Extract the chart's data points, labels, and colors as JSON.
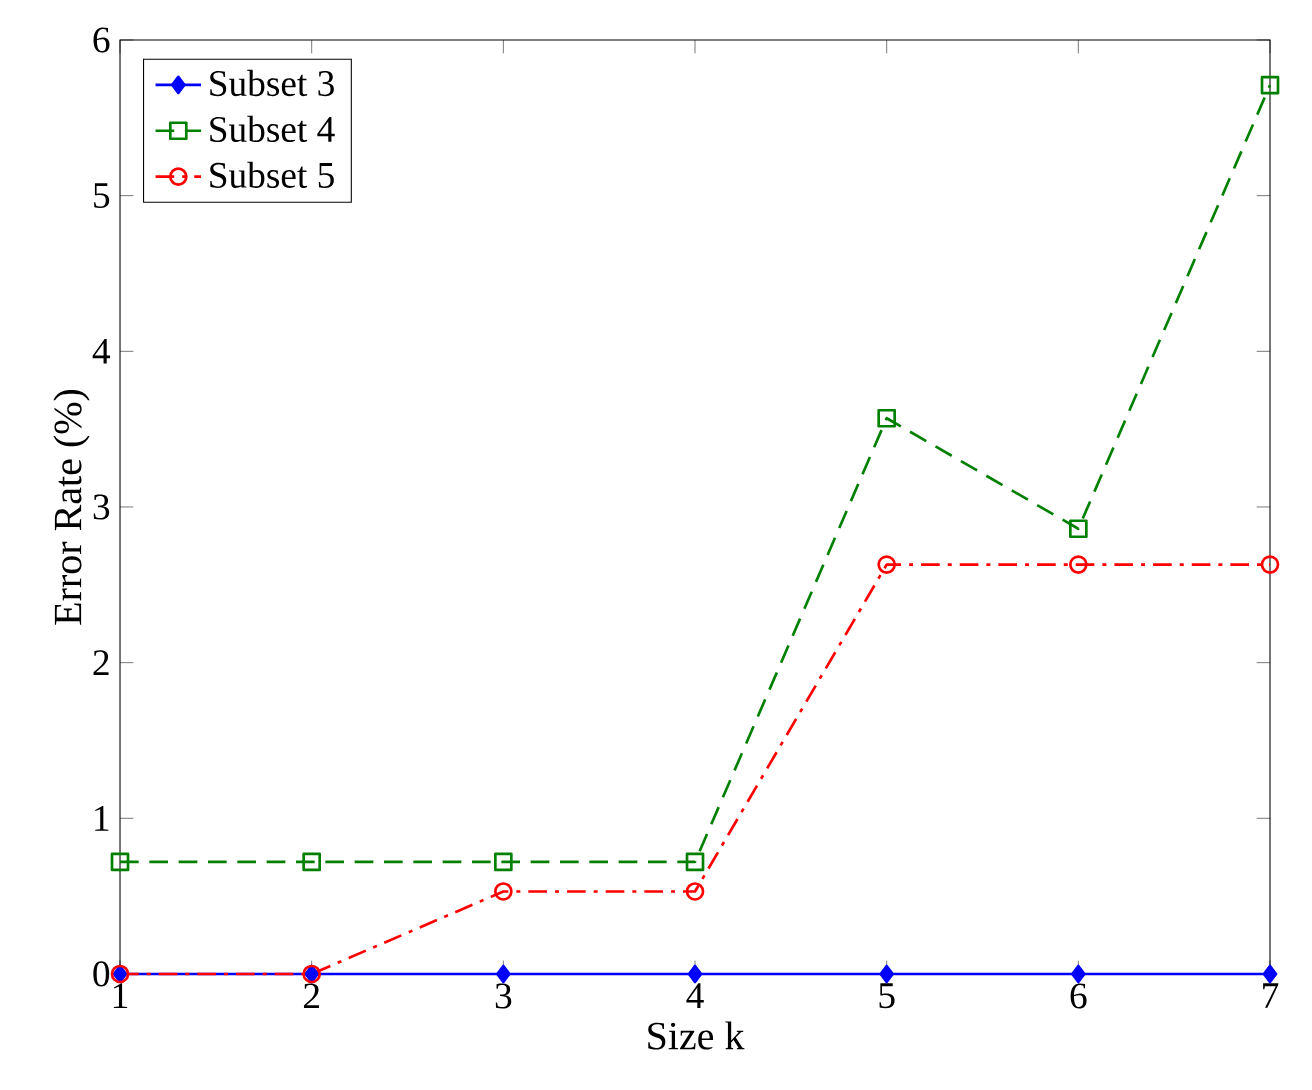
{
  "chart_data": {
    "type": "line",
    "xlabel": "Size k",
    "ylabel": "Error Rate (%)",
    "x": [
      1,
      2,
      3,
      4,
      5,
      6,
      7
    ],
    "series": [
      {
        "name": "Subset 3",
        "color": "#0000ff",
        "marker": "diamond",
        "line_style": "solid",
        "values": [
          0,
          0,
          0,
          0,
          0,
          0,
          0
        ]
      },
      {
        "name": "Subset 4",
        "color": "#008000",
        "marker": "square",
        "line_style": "dashed",
        "values": [
          0.72,
          0.72,
          0.72,
          0.72,
          3.57,
          2.86,
          5.71
        ]
      },
      {
        "name": "Subset 5",
        "color": "#ff0000",
        "marker": "circle",
        "line_style": "dashdot",
        "values": [
          0,
          0,
          0.53,
          0.53,
          2.63,
          2.63,
          2.63
        ]
      }
    ],
    "xlim": [
      1,
      7
    ],
    "ylim": [
      0,
      6
    ],
    "xticks": [
      1,
      2,
      3,
      4,
      5,
      6,
      7
    ],
    "yticks": [
      0,
      1,
      2,
      3,
      4,
      5,
      6
    ],
    "grid": false,
    "legend": "top left"
  }
}
